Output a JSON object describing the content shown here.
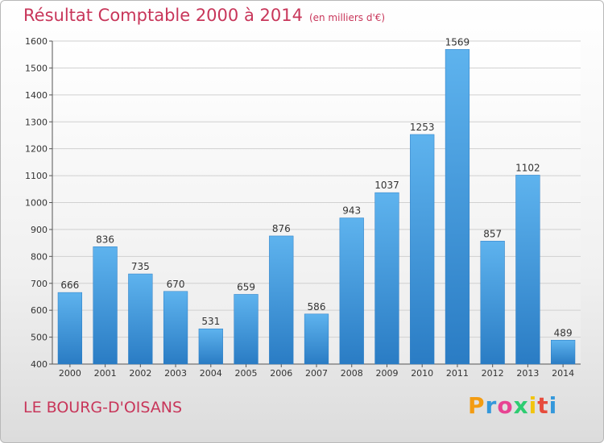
{
  "header": {
    "title": "Résultat Comptable 2000 à 2014",
    "unit": "(en milliers d'€)"
  },
  "footer": {
    "commune": "LE BOURG-D'OISANS",
    "logo_letters": [
      {
        "ch": "P",
        "color": "#f39c12"
      },
      {
        "ch": "r",
        "color": "#3498db"
      },
      {
        "ch": "o",
        "color": "#e84393"
      },
      {
        "ch": "x",
        "color": "#2ecc71"
      },
      {
        "ch": "i",
        "color": "#f1c40f"
      },
      {
        "ch": "t",
        "color": "#e74c3c"
      },
      {
        "ch": "i",
        "color": "#3498db"
      }
    ]
  },
  "chart_data": {
    "type": "bar",
    "title": "Résultat Comptable 2000 à 2014",
    "categories": [
      "2000",
      "2001",
      "2002",
      "2003",
      "2004",
      "2005",
      "2006",
      "2007",
      "2008",
      "2009",
      "2010",
      "2011",
      "2012",
      "2013",
      "2014"
    ],
    "values": [
      666,
      836,
      735,
      670,
      531,
      659,
      876,
      586,
      943,
      1037,
      1253,
      1569,
      857,
      1102,
      489
    ],
    "ylim": [
      400,
      1600
    ],
    "yticks": [
      400,
      500,
      600,
      700,
      800,
      900,
      1000,
      1100,
      1200,
      1300,
      1400,
      1500,
      1600
    ],
    "grid": true,
    "bar_color": "#3a8fd6",
    "grid_color": "#d0d0d0"
  }
}
